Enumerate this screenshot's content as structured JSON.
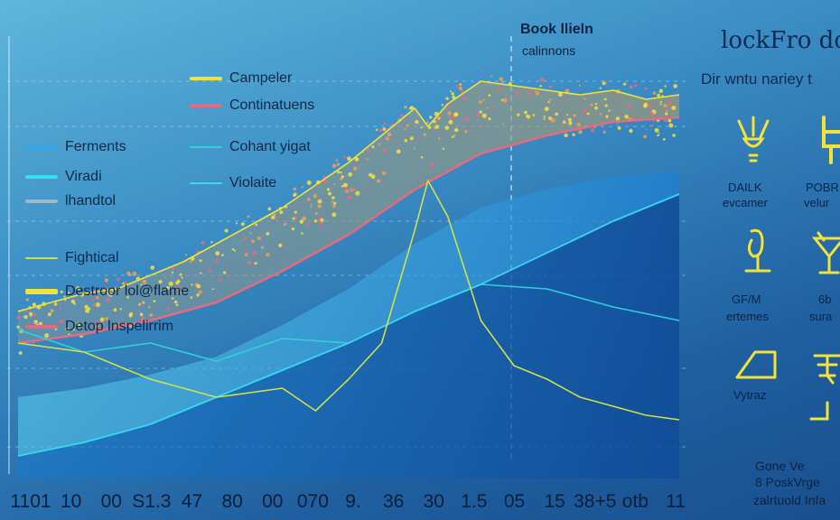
{
  "legend_left": [
    {
      "label": "Ferments",
      "color": "#2fa9e8"
    },
    {
      "label": "Viradi",
      "color": "#36e0f0"
    },
    {
      "label": "lhandtol",
      "color": "#9fb8c8"
    },
    {
      "label": "Fightical",
      "color": "#cfe04a"
    },
    {
      "label": "Destroor lol@flame",
      "color": "#f2e23a"
    },
    {
      "label": "Detop lnspelirrim",
      "color": "#e8677a"
    }
  ],
  "legend_top": [
    {
      "label": "Campeler",
      "color": "#f2e23a"
    },
    {
      "label": "Continatuens",
      "color": "#e56a7e"
    },
    {
      "label": "Cohant yigat",
      "color": "#2fd0d8"
    },
    {
      "label": "Violaite",
      "color": "#38d8f0"
    }
  ],
  "annotation": {
    "title": "Book llieln",
    "subtitle": "calinnons"
  },
  "right_panel": {
    "title": "lockFro do",
    "subtitle": "Dir wntu nariey t",
    "icons": [
      {
        "icon": "lamp-icon",
        "label_1": "DAILK",
        "label_2": "evcamer"
      },
      {
        "icon": "tap-icon",
        "label_1": "POBR",
        "label_2": "velur"
      },
      {
        "icon": "trophy-icon",
        "label_1": "GF/M",
        "label_2": "ertemes"
      },
      {
        "icon": "cocktail-icon",
        "label_1": "6b",
        "label_2": "sura"
      },
      {
        "icon": "ramp-icon",
        "label_1": "Vytraz",
        "label_2": ""
      },
      {
        "icon": "stamp-icon",
        "label_1": "",
        "label_2": ""
      }
    ],
    "footer": [
      "Gone Ve",
      "8 PoskVrge",
      "zalrtuold Infa"
    ]
  },
  "colors": {
    "yellow": "#f2e23a",
    "pink": "#e56a7e",
    "cyan": "#38d8f0"
  },
  "chart_data": {
    "type": "line",
    "title": "",
    "xlabel": "",
    "ylabel": "",
    "x_ticks": [
      "1101",
      "10",
      "00",
      "S1.3",
      "47",
      "80",
      "00",
      "070",
      "9.",
      "36",
      "30",
      "1.5",
      "05",
      "15",
      "38+5",
      "otb",
      "11"
    ],
    "grid": true,
    "series": [
      {
        "name": "Campeler",
        "color": "#f2e23a",
        "x": [
          0,
          5,
          10,
          15,
          20,
          25,
          30,
          35,
          40,
          45,
          50,
          55,
          60,
          62,
          65,
          70,
          75,
          80,
          85,
          90,
          95,
          100
        ],
        "y": [
          0.37,
          0.39,
          0.41,
          0.42,
          0.45,
          0.48,
          0.52,
          0.56,
          0.6,
          0.65,
          0.7,
          0.76,
          0.82,
          0.78,
          0.83,
          0.88,
          0.87,
          0.86,
          0.85,
          0.86,
          0.84,
          0.85
        ]
      },
      {
        "name": "Continatuens",
        "color": "#e56a7e",
        "x": [
          0,
          10,
          20,
          30,
          40,
          50,
          60,
          70,
          80,
          90,
          100
        ],
        "y": [
          0.3,
          0.32,
          0.35,
          0.39,
          0.46,
          0.54,
          0.64,
          0.72,
          0.76,
          0.79,
          0.8
        ]
      },
      {
        "name": "Cohant yigat",
        "color": "#2fd0d8",
        "x": [
          0,
          10,
          20,
          30,
          40,
          50,
          60,
          70,
          80,
          90,
          100
        ],
        "y": [
          0.33,
          0.28,
          0.3,
          0.26,
          0.31,
          0.3,
          0.37,
          0.43,
          0.42,
          0.38,
          0.35
        ]
      },
      {
        "name": "Violaite",
        "color": "#38d8f0",
        "x": [
          0,
          10,
          20,
          30,
          40,
          50,
          60,
          70,
          80,
          90,
          100
        ],
        "y": [
          0.05,
          0.08,
          0.12,
          0.18,
          0.24,
          0.3,
          0.37,
          0.43,
          0.5,
          0.57,
          0.63
        ]
      },
      {
        "name": "Fightical",
        "color": "#cfe04a",
        "x": [
          0,
          10,
          20,
          30,
          40,
          45,
          50,
          55,
          60,
          62,
          65,
          70,
          75,
          80,
          85,
          90,
          95,
          100
        ],
        "y": [
          0.3,
          0.28,
          0.22,
          0.18,
          0.2,
          0.15,
          0.22,
          0.3,
          0.55,
          0.66,
          0.58,
          0.35,
          0.25,
          0.22,
          0.18,
          0.16,
          0.14,
          0.13
        ]
      }
    ]
  }
}
